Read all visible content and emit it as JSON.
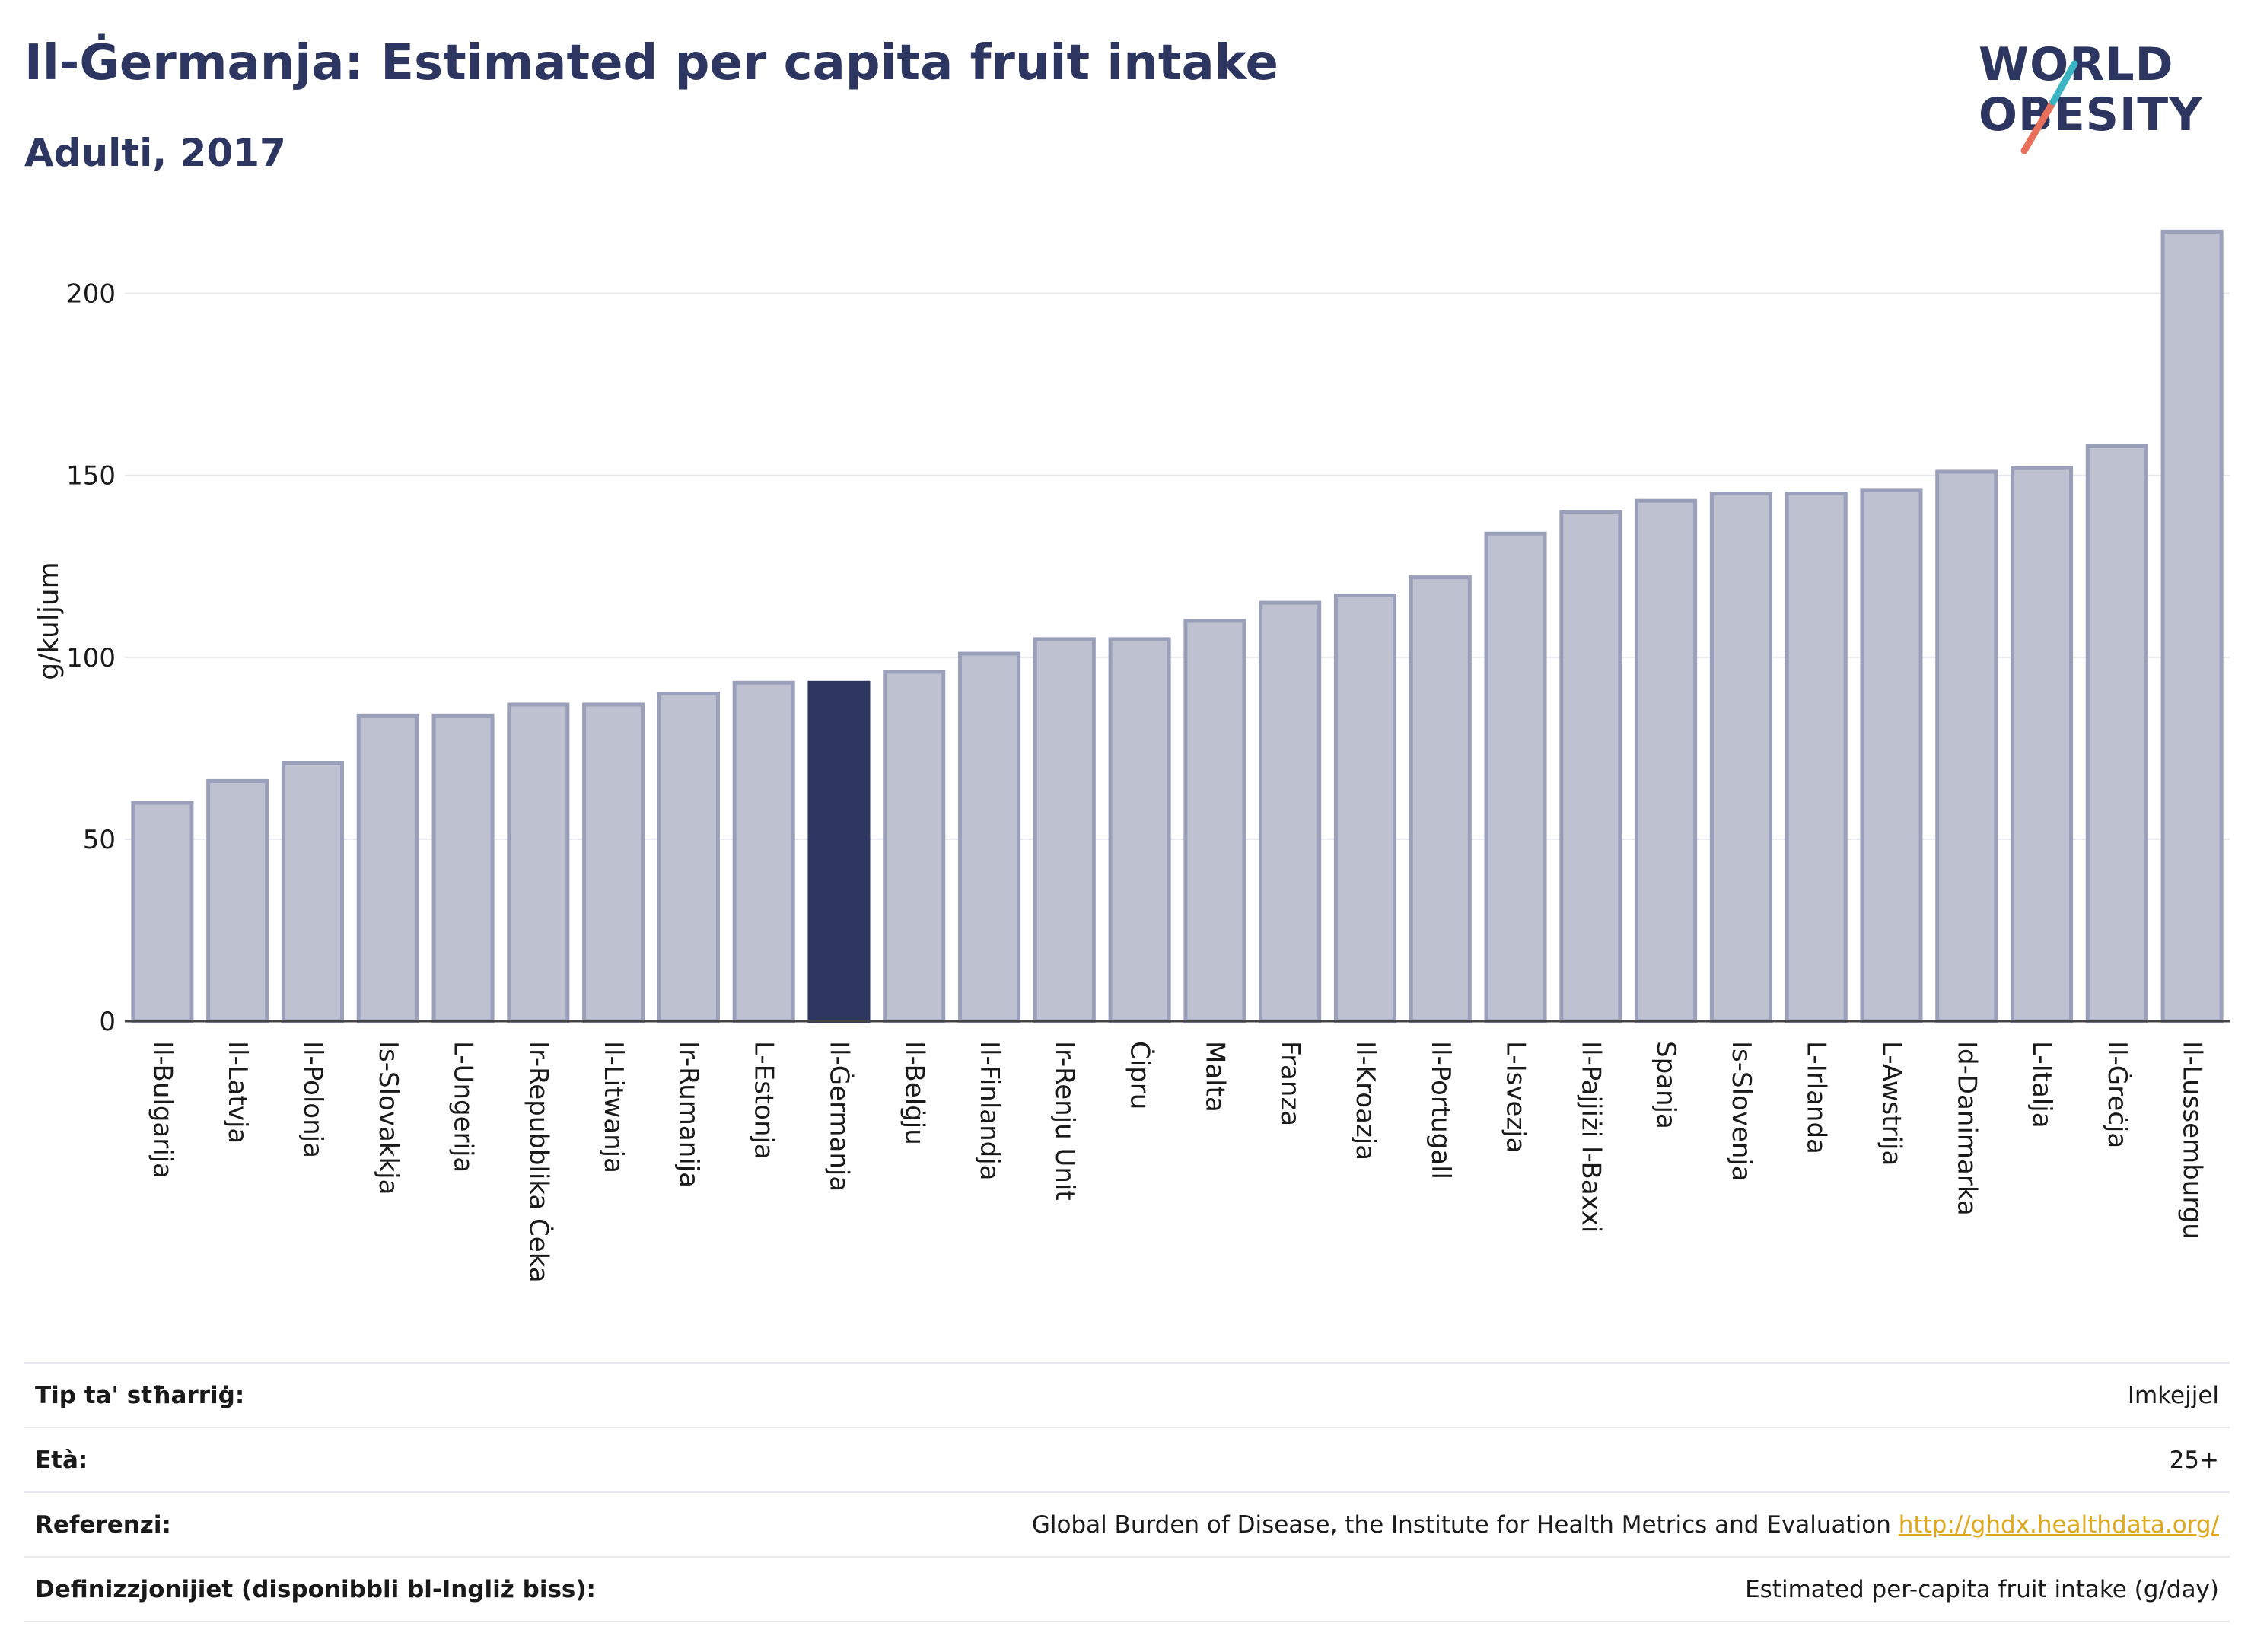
{
  "header": {
    "title": "Il-Ġermanja: Estimated per capita fruit intake",
    "subtitle": "Adulti, 2017"
  },
  "logo": {
    "line1": "WORLD",
    "line2": "OBESITY"
  },
  "colors": {
    "highlight": "#2d3660",
    "bar_fill": "#bec1cf",
    "bar_stroke": "#9a9fba",
    "grid": "#e6e8ee",
    "link": "#e0a81c",
    "logo_teal": "#3bb5c4",
    "logo_coral": "#e8705a"
  },
  "chart_data": {
    "type": "bar",
    "ylabel": "g/kuljum",
    "ylim": [
      0,
      220
    ],
    "yticks": [
      0,
      50,
      100,
      150,
      200
    ],
    "grid": true,
    "highlight_category": "Il-Ġermanja",
    "categories": [
      "Il-Bulgarija",
      "Il-Latvja",
      "Il-Polonja",
      "Is-Slovakkja",
      "L-Ungerija",
      "Ir-Repubblika Ċeka",
      "Il-Litwanja",
      "Ir-Rumanija",
      "L-Estonja",
      "Il-Ġermanja",
      "Il-Belġju",
      "Il-Finlandja",
      "Ir-Renju Unit",
      "Ċipru",
      "Malta",
      "Franza",
      "Il-Kroazja",
      "Il-Portugall",
      "L-Isvezja",
      "Il-Pajjiżi l-Baxxi",
      "Spanja",
      "Is-Slovenja",
      "L-Irlanda",
      "L-Awstrija",
      "Id-Danimarka",
      "L-Italja",
      "Il-Ġreċja",
      "Il-Lussemburgu"
    ],
    "values": [
      60,
      66,
      71,
      84,
      84,
      87,
      87,
      90,
      93,
      93,
      96,
      101,
      105,
      105,
      110,
      115,
      117,
      122,
      134,
      140,
      143,
      145,
      145,
      146,
      151,
      152,
      158,
      217
    ]
  },
  "meta": {
    "rows": [
      {
        "label": "Tip ta' stħarriġ:",
        "value": "Imkejjel"
      },
      {
        "label": "Età:",
        "value": "25+"
      },
      {
        "label": "Referenzi:",
        "value": "Global Burden of Disease, the Institute for Health Metrics and Evaluation ",
        "link": "http://ghdx.healthdata.org/"
      },
      {
        "label": "Definizzjonijiet (disponibbli bl-Ingliż biss):",
        "value": "Estimated per-capita fruit intake (g/day)"
      }
    ]
  }
}
